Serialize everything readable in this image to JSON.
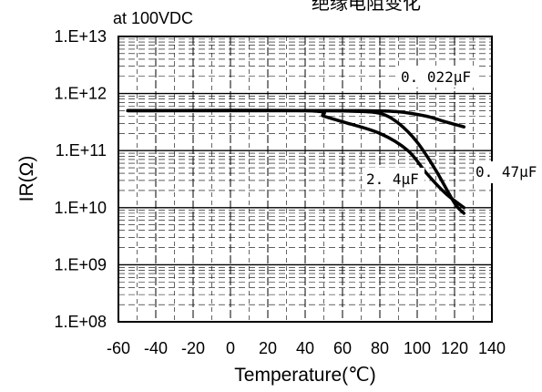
{
  "header": {
    "title": "绝缘电阻变化",
    "condition": "at 100VDC"
  },
  "chart_data": {
    "type": "line",
    "xlabel": "Temperature(℃)",
    "ylabel": "IR(Ω)",
    "x_ticks": [
      "-60",
      "-40",
      "-20",
      "0",
      "20",
      "40",
      "60",
      "80",
      "100",
      "120",
      "140"
    ],
    "y_ticks": [
      "1.E+08",
      "1.E+09",
      "1.E+10",
      "1.E+11",
      "1.E+12",
      "1.E+13"
    ],
    "xlim": [
      -60,
      140
    ],
    "ylim": [
      100000000,
      10000000000000
    ],
    "y_scale": "log",
    "grid": true,
    "series": [
      {
        "name": "0. 022μF",
        "points": [
          [
            -55,
            500000000000.0
          ],
          [
            40,
            500000000000.0
          ],
          [
            70,
            500000000000.0
          ],
          [
            90,
            480000000000.0
          ],
          [
            105,
            400000000000.0
          ],
          [
            115,
            320000000000.0
          ],
          [
            125,
            260000000000.0
          ]
        ]
      },
      {
        "name": "0. 47μF",
        "points": [
          [
            -55,
            500000000000.0
          ],
          [
            40,
            500000000000.0
          ],
          [
            65,
            490000000000.0
          ],
          [
            80,
            450000000000.0
          ],
          [
            90,
            300000000000.0
          ],
          [
            100,
            140000000000.0
          ],
          [
            110,
            45000000000.0
          ],
          [
            120,
            12000000000.0
          ],
          [
            125,
            8000000000.0
          ]
        ]
      },
      {
        "name": "2. 4μF",
        "points": [
          [
            -55,
            500000000000.0
          ],
          [
            40,
            500000000000.0
          ],
          [
            50,
            400000000000.0
          ],
          [
            60,
            320000000000.0
          ],
          [
            80,
            200000000000.0
          ],
          [
            95,
            100000000000.0
          ],
          [
            105,
            40000000000.0
          ],
          [
            115,
            18000000000.0
          ],
          [
            125,
            10000000000.0
          ]
        ]
      }
    ]
  }
}
